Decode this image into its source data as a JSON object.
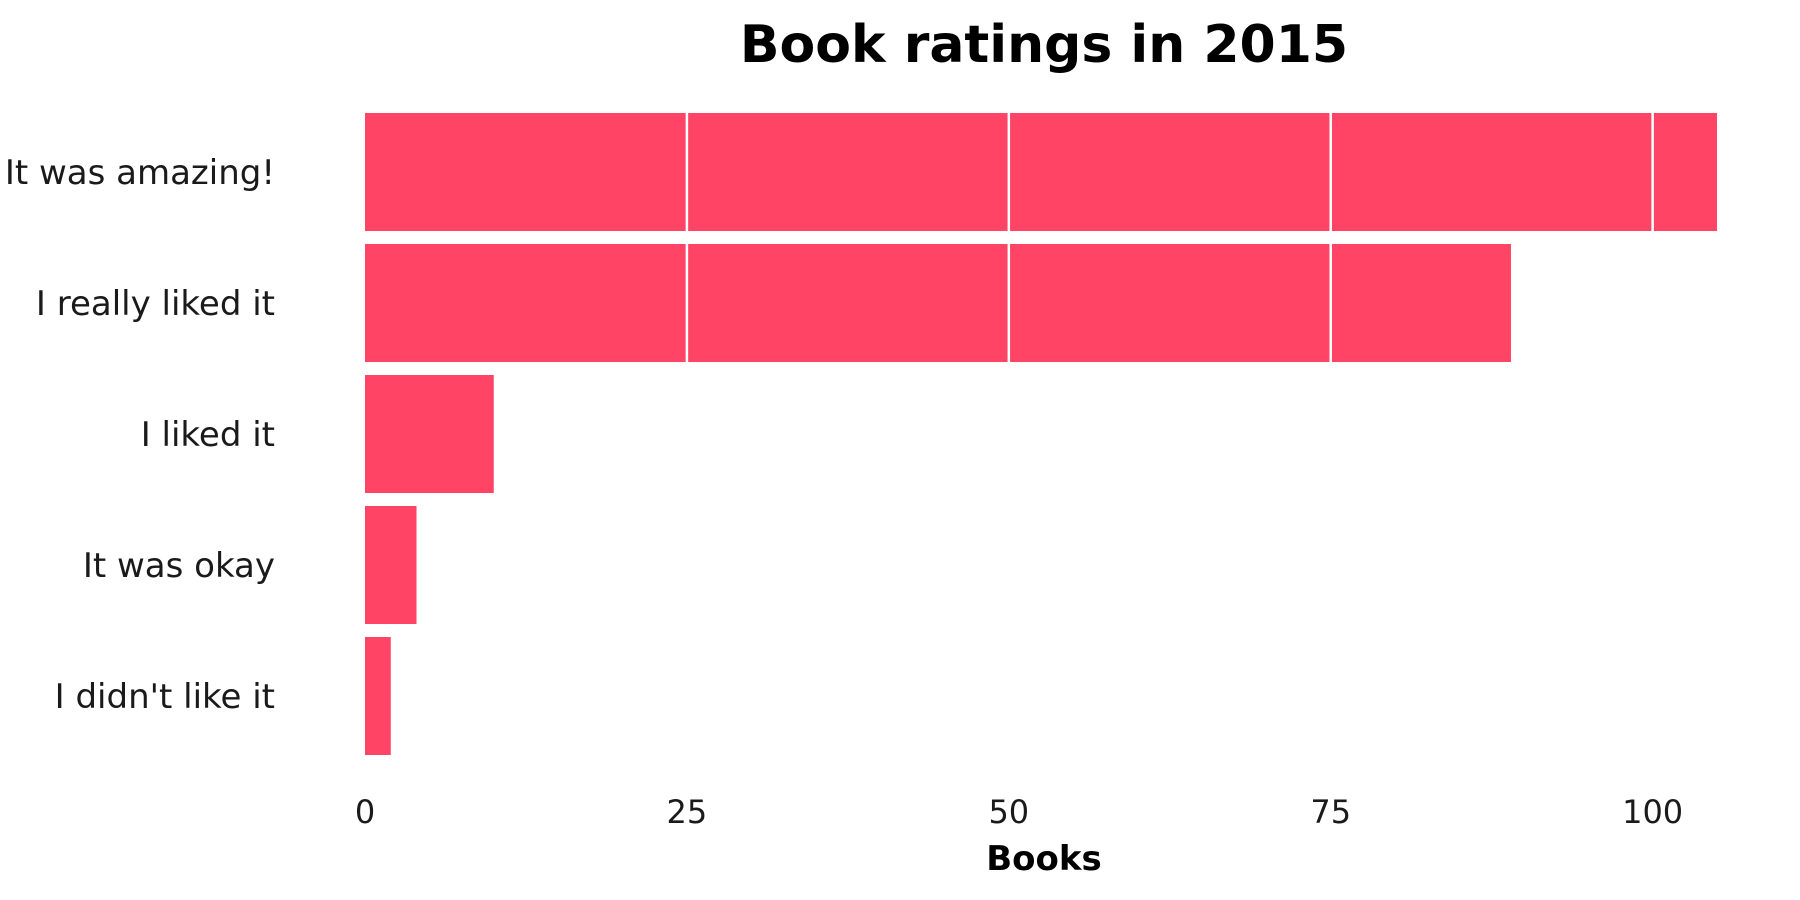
{
  "chart_data": {
    "type": "bar",
    "orientation": "horizontal",
    "title": "Book ratings in 2015",
    "xlabel": "Books",
    "ylabel": "",
    "categories": [
      "It was amazing!",
      "I really liked it",
      "I liked it",
      "It was okay",
      "I didn't like it"
    ],
    "values": [
      105,
      89,
      10,
      4,
      2
    ],
    "xlim": [
      0,
      105
    ],
    "xticks": [
      "0",
      "25",
      "50",
      "75",
      "100"
    ],
    "segment_size": 25,
    "grid": false,
    "legend": "none",
    "bar_color": "#ff4466",
    "segment_separator_color": "#ffffff"
  }
}
